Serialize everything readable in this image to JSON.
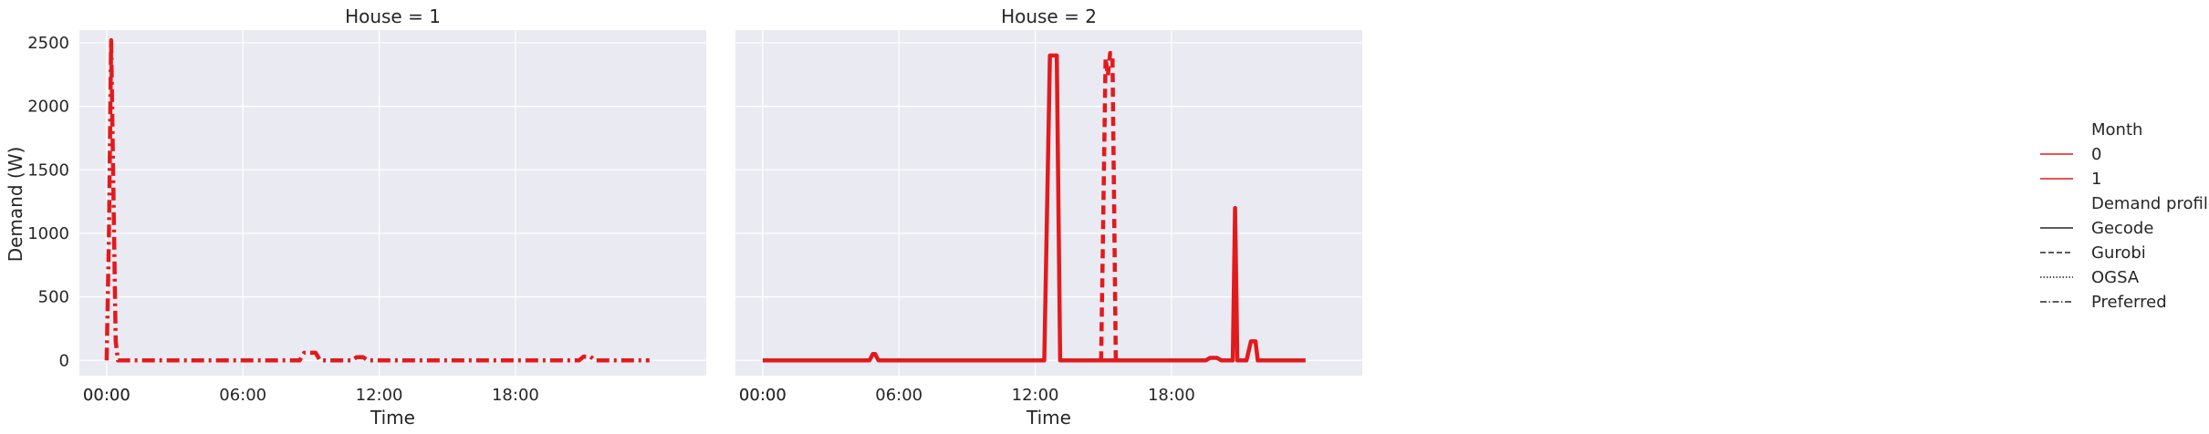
{
  "chart_data": {
    "type": "line",
    "ylabel": "Demand (W)",
    "xlabel": "Time",
    "ylim": [
      -120,
      2600
    ],
    "xlim_hours": [
      -1.2,
      26.4
    ],
    "yticks": [
      0,
      500,
      1000,
      1500,
      2000,
      2500
    ],
    "xticks": [
      {
        "value": 0,
        "label": "00:00"
      },
      {
        "value": 6,
        "label": "06:00"
      },
      {
        "value": 12,
        "label": "12:00"
      },
      {
        "value": 18,
        "label": "18:00"
      }
    ],
    "extra_x_tick_label": "00:00",
    "grid": true,
    "legend_placement": "right",
    "legend": {
      "month_title": "Month",
      "months": [
        "0",
        "1"
      ],
      "profile_title": "Demand profile",
      "profiles": [
        "Gecode",
        "Gurobi",
        "OGSA",
        "Preferred"
      ]
    },
    "colors": {
      "series": "#e31a1c",
      "panel_bg": "#eaeaf2",
      "grid": "#ffffff"
    },
    "panels": [
      {
        "title": "House = 1",
        "series": [
          {
            "month": "1",
            "profile": "Preferred",
            "x": [
              0,
              0.1,
              0.2,
              0.4,
              0.5,
              8.5,
              8.7,
              9.2,
              9.4,
              10.8,
              11.0,
              11.3,
              11.5,
              20.8,
              21.0,
              21.3,
              21.5,
              23.9
            ],
            "y": [
              0,
              1000,
              2520,
              150,
              0,
              0,
              60,
              60,
              0,
              0,
              25,
              25,
              0,
              0,
              30,
              30,
              0,
              0
            ]
          }
        ]
      },
      {
        "title": "House = 2",
        "series": [
          {
            "month": "1",
            "profile": "Gecode",
            "x": [
              0,
              4.7,
              4.85,
              4.95,
              5.1,
              12.4,
              12.65,
              12.8,
              12.95,
              13.1,
              19.5,
              19.7,
              20.0,
              20.2,
              20.7,
              20.8,
              20.9,
              21.0,
              21.3,
              21.5,
              21.7,
              21.8,
              23.9
            ],
            "y": [
              0,
              0,
              50,
              50,
              0,
              0,
              2400,
              2400,
              2400,
              0,
              0,
              20,
              20,
              0,
              0,
              1200,
              0,
              0,
              0,
              150,
              150,
              0,
              0
            ]
          },
          {
            "month": "1",
            "profile": "Gurobi",
            "x": [
              14.9,
              15.1,
              15.2,
              15.3,
              15.4,
              15.55
            ],
            "y": [
              0,
              2380,
              2240,
              2420,
              2410,
              0
            ]
          }
        ]
      }
    ]
  }
}
